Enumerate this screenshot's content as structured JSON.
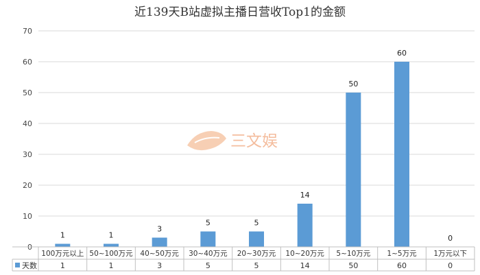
{
  "chart_data": {
    "type": "bar",
    "title": "近139天B站虚拟主播日营收Top1的金额",
    "categories": [
      "100万元以上",
      "50~100万元",
      "40~50万元",
      "30~40万元",
      "20~30万元",
      "10~20万元",
      "5~10万元",
      "1~5万元",
      "1万元以下"
    ],
    "series": [
      {
        "name": "天数",
        "values": [
          1,
          1,
          3,
          5,
          5,
          14,
          50,
          60,
          0
        ],
        "color": "#5b9bd5"
      }
    ],
    "ylim": [
      0,
      70
    ],
    "yticks": [
      0,
      10,
      20,
      30,
      40,
      50,
      60,
      70
    ],
    "grid": true,
    "legend": "data-table",
    "xlabel": "",
    "ylabel": ""
  },
  "watermark": {
    "text": "三文娱",
    "color": "#f3b28e"
  }
}
